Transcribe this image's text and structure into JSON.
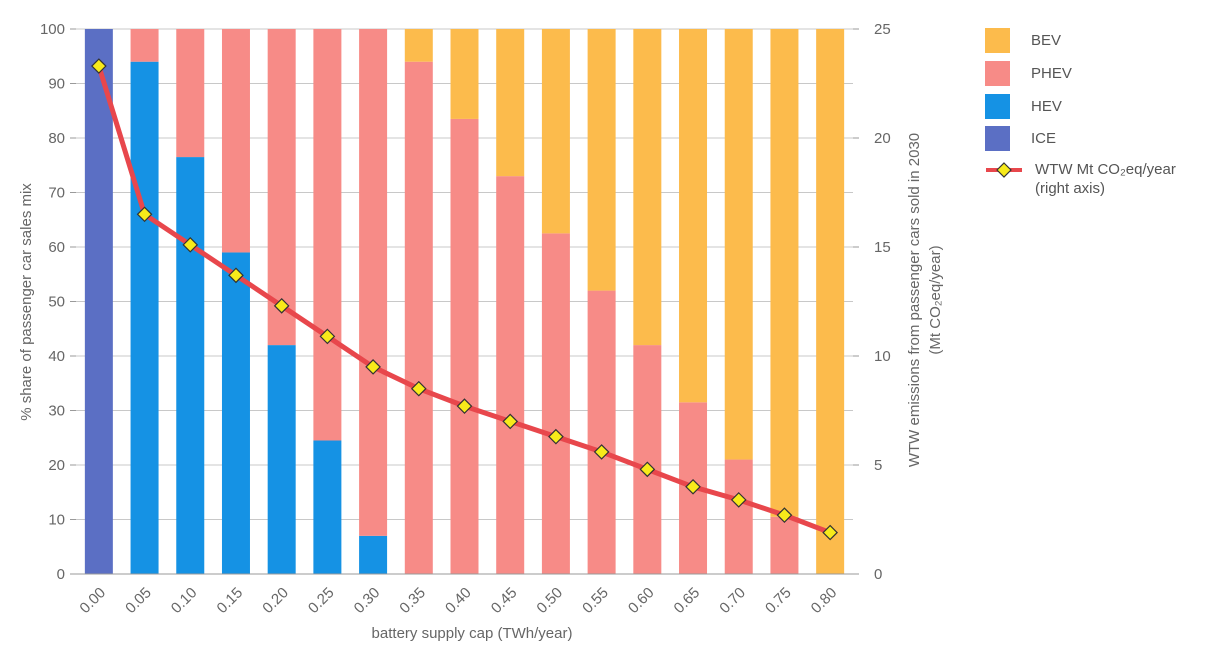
{
  "chart_data": {
    "type": "bar",
    "stacked": true,
    "xlabel": "battery supply cap (TWh/year)",
    "ylabel": "% share of passenger car sales mix",
    "y2label_line1": "WTW emissions from passenger cars sold in 2030",
    "y2label_line2": "(Mt CO₂eq/year)",
    "categories": [
      "0.00",
      "0.05",
      "0.10",
      "0.15",
      "0.20",
      "0.25",
      "0.30",
      "0.35",
      "0.40",
      "0.45",
      "0.50",
      "0.55",
      "0.60",
      "0.65",
      "0.70",
      "0.75",
      "0.80"
    ],
    "ylim": [
      0,
      100
    ],
    "y2lim": [
      0,
      25
    ],
    "yticks": [
      "0",
      "10",
      "20",
      "30",
      "40",
      "50",
      "60",
      "70",
      "80",
      "90",
      "100"
    ],
    "y2ticks": [
      "0",
      "5",
      "10",
      "15",
      "20",
      "25"
    ],
    "series": [
      {
        "name": "ICE",
        "color": "#5b6fc4",
        "values": [
          100,
          0,
          0,
          0,
          0,
          0,
          0,
          0,
          0,
          0,
          0,
          0,
          0,
          0,
          0,
          0,
          0
        ]
      },
      {
        "name": "HEV",
        "color": "#1592e4",
        "values": [
          0,
          94,
          76.5,
          59,
          42,
          24.5,
          7,
          0,
          0,
          0,
          0,
          0,
          0,
          0,
          0,
          0,
          0
        ]
      },
      {
        "name": "PHEV",
        "color": "#f78b87",
        "values": [
          0,
          6,
          23.5,
          41,
          58,
          75.5,
          93,
          94,
          83.5,
          73,
          62.5,
          52,
          42,
          31.5,
          21,
          10.5,
          0
        ]
      },
      {
        "name": "BEV",
        "color": "#fcbb4c",
        "values": [
          0,
          0,
          0,
          0,
          0,
          0,
          0,
          6,
          16.5,
          27,
          37.5,
          48,
          58,
          68.5,
          79,
          89.5,
          100
        ]
      }
    ],
    "line_series": {
      "name": "WTW Mt CO₂eq/year (right axis)",
      "axis": "right",
      "color": "#e8474c",
      "marker_color": "#f7ea1a",
      "values": [
        23.3,
        16.5,
        15.1,
        13.7,
        12.3,
        10.9,
        9.5,
        8.5,
        7.7,
        7.0,
        6.3,
        5.6,
        4.8,
        4.0,
        3.4,
        2.7,
        1.9
      ]
    },
    "legend_position": "right"
  },
  "legend": {
    "items": [
      {
        "label": "BEV",
        "color": "#fcbb4c"
      },
      {
        "label": "PHEV",
        "color": "#f78b87"
      },
      {
        "label": "HEV",
        "color": "#1592e4"
      },
      {
        "label": "ICE",
        "color": "#5b6fc4"
      }
    ],
    "line_label_1": "WTW Mt CO₂eq/year",
    "line_label_2": "(right axis)"
  }
}
